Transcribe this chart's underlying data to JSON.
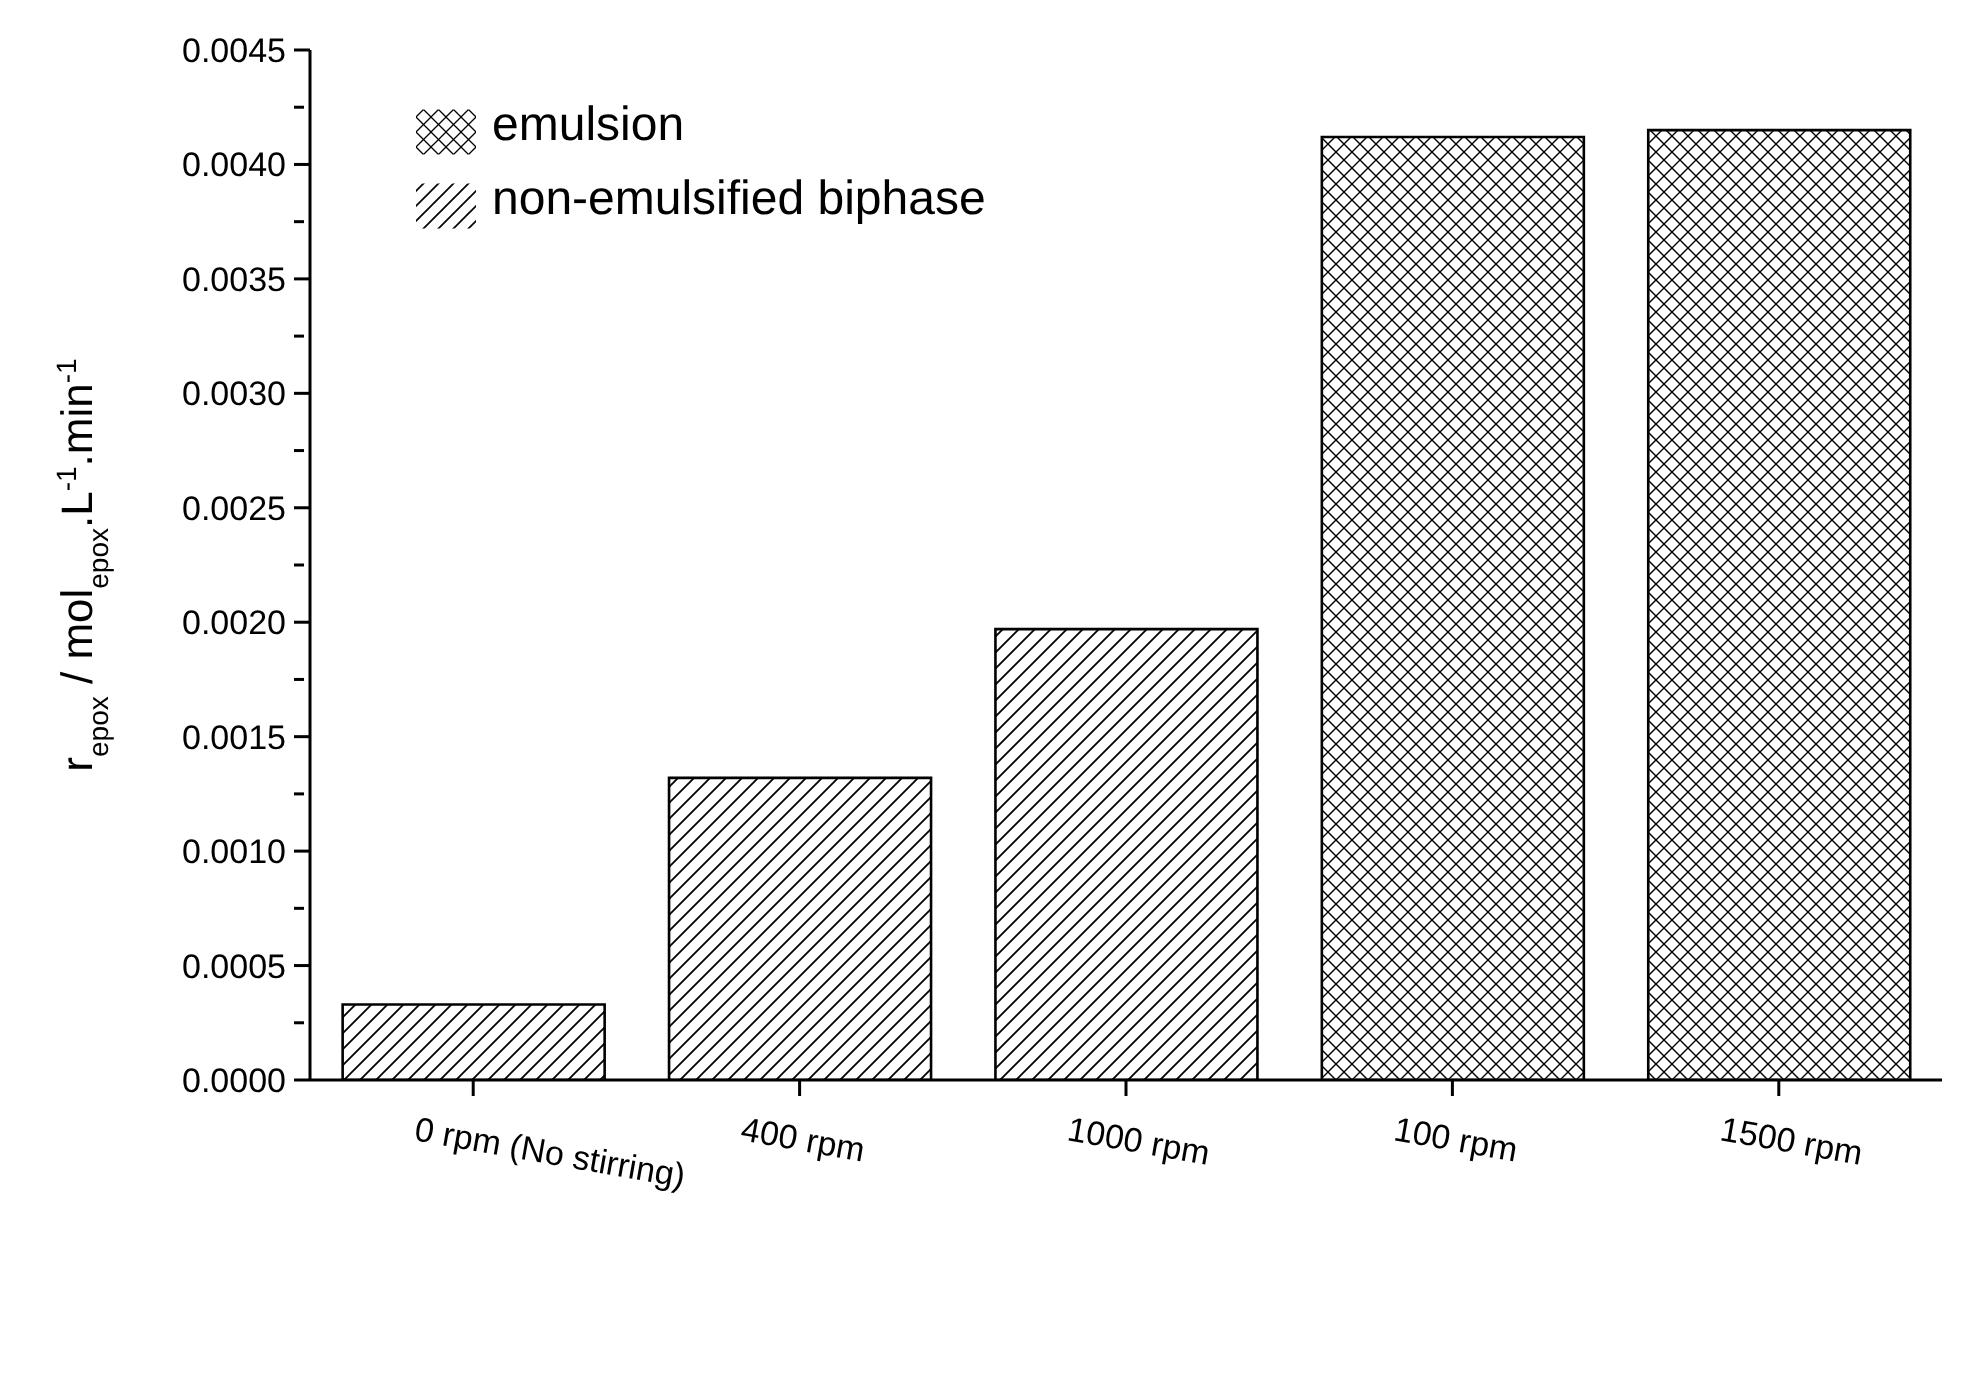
{
  "chart_data": {
    "type": "bar",
    "ylabel": "r$_{epox}$ / mol$_{epox}$.L$^{-1}$.min$^{-1}$",
    "categories": [
      "0 rpm (No stirring)",
      "400 rpm",
      "1000 rpm",
      "100 rpm",
      "1500 rpm"
    ],
    "stacked": true,
    "series": [
      {
        "name": "non-emulsified biphase",
        "color": "#000000",
        "values": [
          0.00033,
          0.00132,
          0.00197,
          null,
          null
        ]
      },
      {
        "name": "emulsion",
        "color": "#000000",
        "values": [
          null,
          null,
          null,
          0.00412,
          0.00415
        ]
      }
    ],
    "ylim": [
      0,
      0.0045
    ],
    "yticks": [
      {
        "value": 0,
        "label": "0.0000"
      },
      {
        "value": 0.00025,
        "label": null
      },
      {
        "value": 0.0005,
        "label": "0.0005"
      },
      {
        "value": 0.00075,
        "label": null
      },
      {
        "value": 0.001,
        "label": "0.0010"
      },
      {
        "value": 0.00125,
        "label": null
      },
      {
        "value": 0.0015,
        "label": "0.0015"
      },
      {
        "value": 0.00175,
        "label": null
      },
      {
        "value": 0.002,
        "label": "0.0020"
      },
      {
        "value": 0.00225,
        "label": null
      },
      {
        "value": 0.0025,
        "label": "0.0025"
      },
      {
        "value": 0.00275,
        "label": null
      },
      {
        "value": 0.003,
        "label": "0.0030"
      },
      {
        "value": 0.00325,
        "label": null
      },
      {
        "value": 0.0035,
        "label": "0.0035"
      },
      {
        "value": 0.00375,
        "label": null
      },
      {
        "value": 0.004,
        "label": "0.0040"
      },
      {
        "value": 0.00425,
        "label": null
      },
      {
        "value": 0.0045,
        "label": "0.0045"
      }
    ],
    "legend": "top left",
    "grid": false
  }
}
